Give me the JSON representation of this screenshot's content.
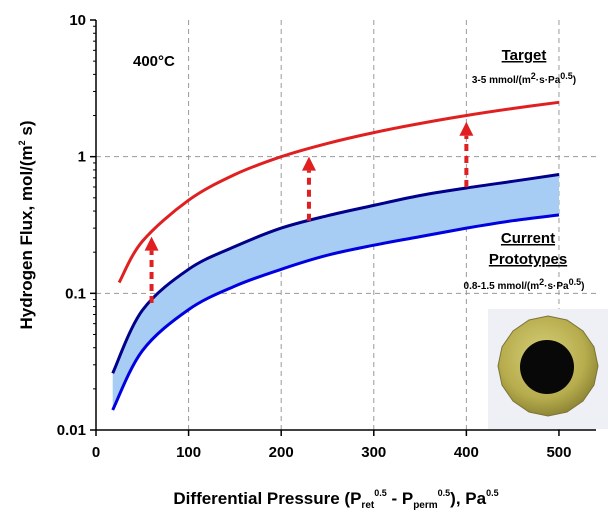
{
  "chart_data": {
    "type": "line",
    "title": "",
    "xlabel": {
      "main": "Differential Pressure (P",
      "ret_sub": "ret",
      "ret_sup": "0.5",
      "mid": " - P",
      "perm_sub": "perm",
      "perm_sup": "0.5",
      "tail": "), Pa",
      "tail_sup": "0.5"
    },
    "ylabel": {
      "main": "Hydrogen Flux, mol/(m",
      "sup": "2",
      "tail": " s)"
    },
    "x_ticks": [
      "0",
      "100",
      "200",
      "300",
      "400",
      "500"
    ],
    "y_ticks": [
      "0.01",
      "0.1",
      "1",
      "10"
    ],
    "xlim": [
      0,
      540
    ],
    "ylim": [
      0.01,
      10
    ],
    "y_scale": "log",
    "grid": true,
    "series": [
      {
        "name": "Target",
        "color": "#e02020",
        "x": [
          25,
          50,
          100,
          150,
          200,
          250,
          300,
          350,
          400,
          450,
          500
        ],
        "y": [
          0.12,
          0.24,
          0.48,
          0.74,
          1.0,
          1.25,
          1.5,
          1.75,
          2.0,
          2.25,
          2.5
        ]
      },
      {
        "name": "Current Prototypes upper",
        "color": "#00008b",
        "x": [
          18,
          50,
          100,
          150,
          200,
          250,
          300,
          350,
          400,
          450,
          500
        ],
        "y": [
          0.026,
          0.075,
          0.15,
          0.22,
          0.3,
          0.37,
          0.44,
          0.52,
          0.59,
          0.66,
          0.74
        ]
      },
      {
        "name": "Current Prototypes lower",
        "color": "#0000e0",
        "x": [
          18,
          50,
          100,
          150,
          200,
          250,
          300,
          350,
          400,
          450,
          500
        ],
        "y": [
          0.014,
          0.038,
          0.076,
          0.113,
          0.15,
          0.19,
          0.225,
          0.26,
          0.3,
          0.34,
          0.375
        ]
      }
    ],
    "band_fill": "#a8cdf5",
    "arrows": [
      {
        "x": 60,
        "y_from": 0.085,
        "y_to": 0.26
      },
      {
        "x": 230,
        "y_from": 0.34,
        "y_to": 1.0
      },
      {
        "x": 400,
        "y_from": 0.6,
        "y_to": 1.8
      }
    ],
    "annotations": {
      "temperature": "400°C",
      "target_label": "Target",
      "target_value_main": "3-5 mmol/(m",
      "target_value_sup1": "2",
      "target_value_mid": "·s·Pa",
      "target_value_sup2": "0.5",
      "target_value_tail": ")",
      "current_label_1": "Current",
      "current_label_2": "Prototypes",
      "current_value_main": "0.8-1.5 mmol/(m",
      "current_value_sup1": "2",
      "current_value_mid": "·s·Pa",
      "current_value_sup2": "0.5",
      "current_value_tail": ")"
    },
    "colors": {
      "target": "#e02020",
      "upper": "#00008b",
      "lower": "#0000e0",
      "band": "#a8cdf5",
      "arrow": "#e02020",
      "grid": "#9a9a9a"
    }
  },
  "image": {
    "name": "membrane-disc-photo"
  }
}
